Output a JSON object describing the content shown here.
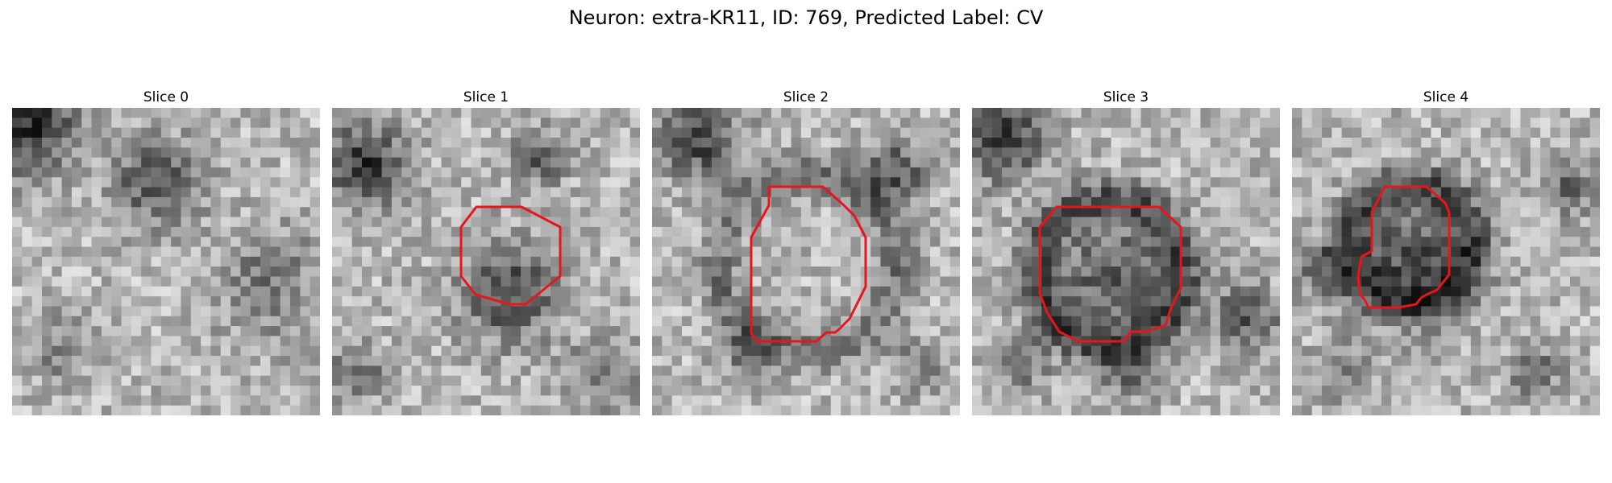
{
  "figure": {
    "title": "Neuron: extra-KR11, ID: 769, Predicted Label: CV"
  },
  "panels": [
    {
      "title": "Slice 0",
      "has_contour": false
    },
    {
      "title": "Slice 1",
      "has_contour": true
    },
    {
      "title": "Slice 2",
      "has_contour": true
    },
    {
      "title": "Slice 3",
      "has_contour": true
    },
    {
      "title": "Slice 4",
      "has_contour": true
    }
  ],
  "colors": {
    "contour": "#e8161c",
    "background": "#ffffff"
  }
}
